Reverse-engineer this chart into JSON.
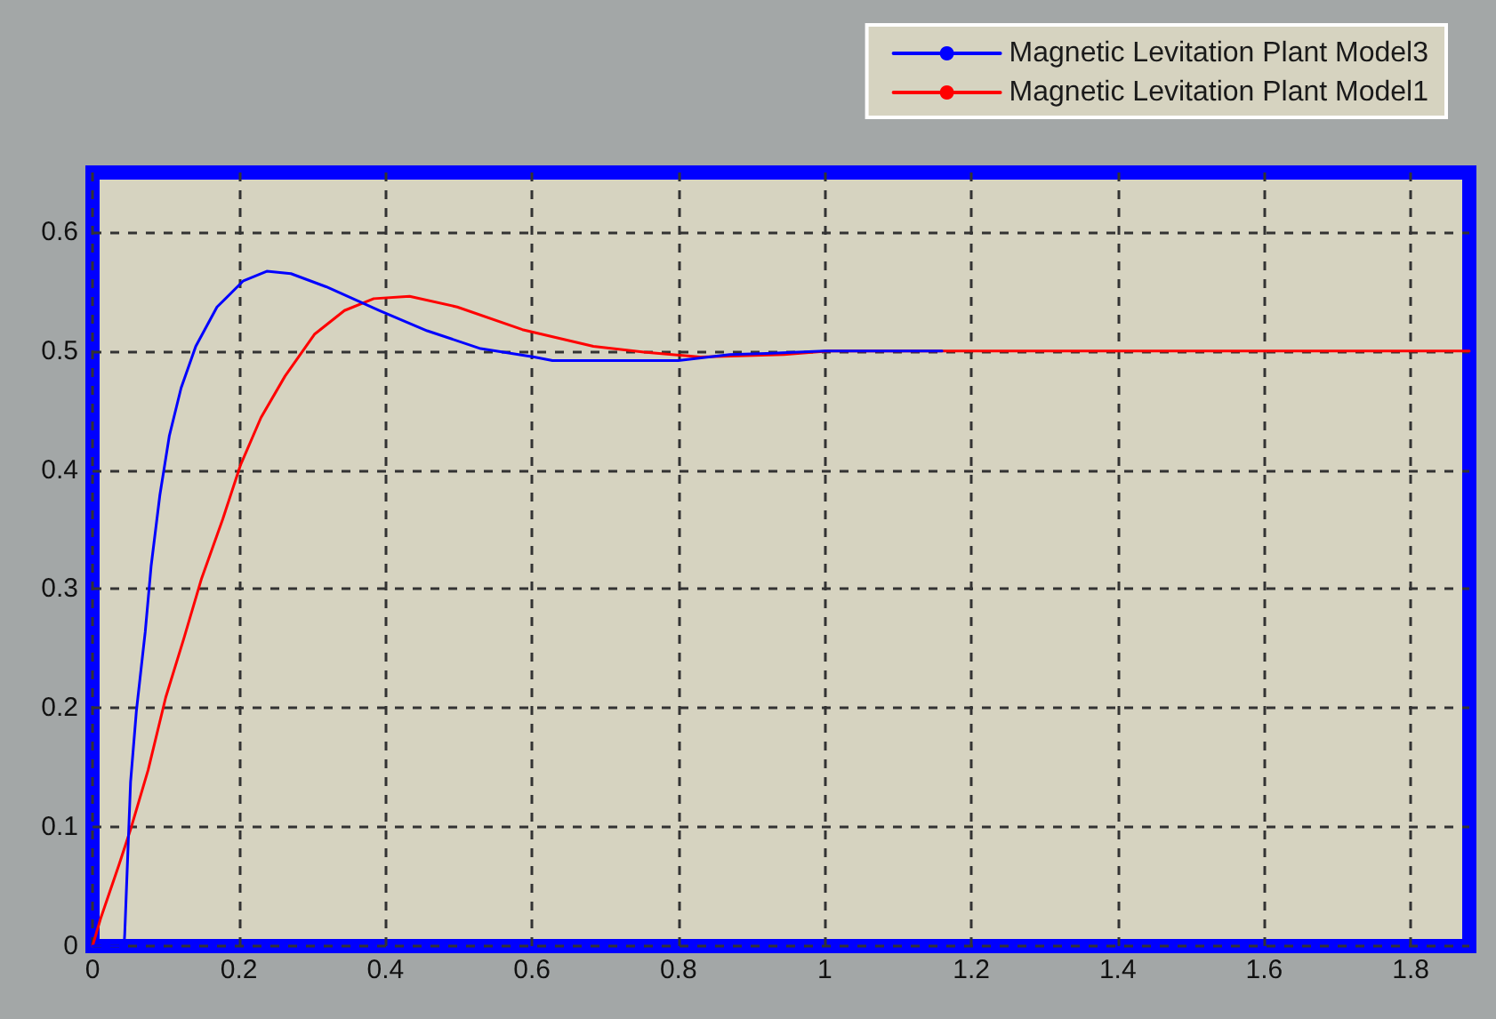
{
  "chart_data": {
    "type": "line",
    "marker": "none",
    "line_style": "solid",
    "grid": true,
    "legend": "top right",
    "xlim": [
      0,
      1.88
    ],
    "xticks": [
      0,
      0.2,
      0.4,
      0.6,
      0.8,
      1,
      1.2,
      1.4,
      1.6,
      1.8
    ],
    "ylim": [
      0,
      0.65
    ],
    "yticks": [
      0,
      0.1,
      0.2,
      0.3,
      0.4,
      0.5,
      0.6
    ],
    "series": [
      {
        "name": "Magnetic Levitation Plant Model3",
        "color": "#0000ff",
        "x": [
          0,
          0.043,
          0.044,
          0.052,
          0.06,
          0.072,
          0.08,
          0.092,
          0.105,
          0.121,
          0.141,
          0.17,
          0.206,
          0.238,
          0.271,
          0.319,
          0.392,
          0.457,
          0.53,
          0.603,
          0.628,
          0.8,
          0.87,
          0.92,
          1.0,
          1.16
        ],
        "values": [
          0,
          0,
          0.01,
          0.138,
          0.198,
          0.264,
          0.319,
          0.379,
          0.429,
          0.469,
          0.504,
          0.537,
          0.559,
          0.567,
          0.565,
          0.554,
          0.534,
          0.517,
          0.502,
          0.495,
          0.492,
          0.492,
          0.497,
          0.498,
          0.5,
          0.5
        ]
      },
      {
        "name": "Magnetic Levitation Plant Model1",
        "color": "#ff0000",
        "x": [
          0,
          0.011,
          0.036,
          0.052,
          0.076,
          0.1,
          0.125,
          0.149,
          0.178,
          0.202,
          0.23,
          0.263,
          0.303,
          0.344,
          0.384,
          0.433,
          0.498,
          0.587,
          0.684,
          0.753,
          0.83,
          0.944,
          1.005,
          1.88
        ],
        "values": [
          0,
          0.023,
          0.068,
          0.098,
          0.148,
          0.209,
          0.259,
          0.309,
          0.359,
          0.404,
          0.444,
          0.479,
          0.514,
          0.534,
          0.544,
          0.546,
          0.537,
          0.518,
          0.504,
          0.499,
          0.495,
          0.497,
          0.5,
          0.5
        ]
      }
    ]
  }
}
